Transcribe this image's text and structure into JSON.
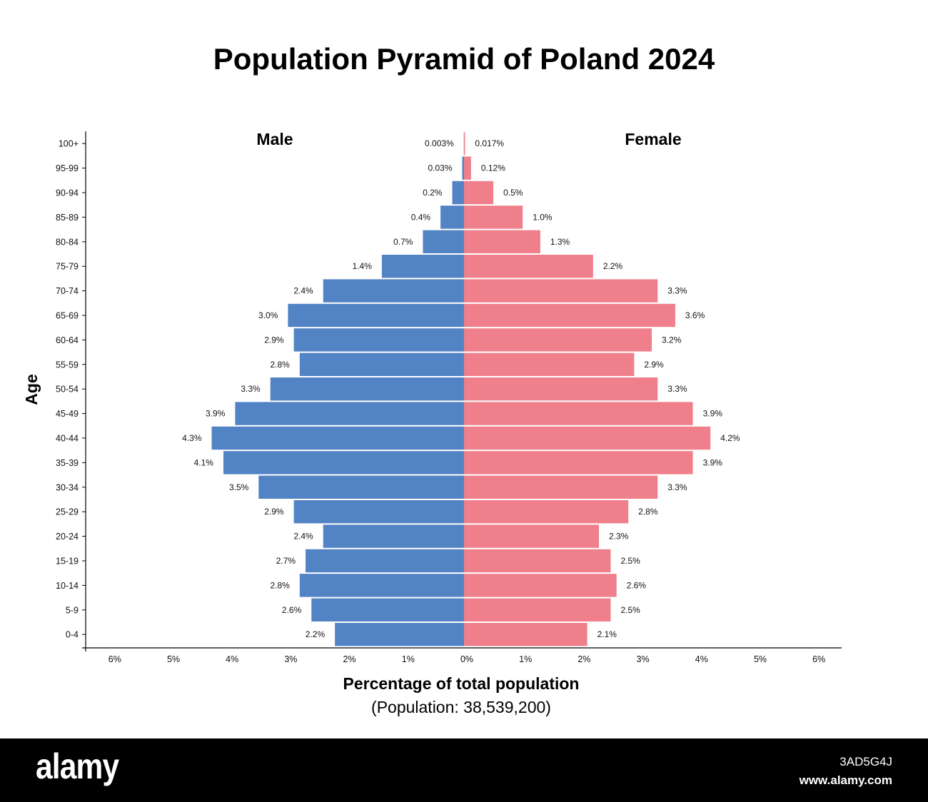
{
  "chart_data": {
    "type": "bar",
    "title": "Population Pyramid of Poland 2024",
    "categories": [
      "100+",
      "95-99",
      "90-94",
      "85-89",
      "80-84",
      "75-79",
      "70-74",
      "65-69",
      "60-64",
      "55-59",
      "50-54",
      "45-49",
      "40-44",
      "35-39",
      "30-34",
      "25-29",
      "20-24",
      "15-19",
      "10-14",
      "5-9",
      "0-4"
    ],
    "series": [
      {
        "name": "Male",
        "color": "#5283c4",
        "values": [
          0.003,
          0.03,
          0.2,
          0.4,
          0.7,
          1.4,
          2.4,
          3.0,
          2.9,
          2.8,
          3.3,
          3.9,
          4.3,
          4.1,
          3.5,
          2.9,
          2.4,
          2.7,
          2.8,
          2.6,
          2.2
        ],
        "labels": [
          "0.003%",
          "0.03%",
          "0.2%",
          "0.4%",
          "0.7%",
          "1.4%",
          "2.4%",
          "3.0%",
          "2.9%",
          "2.8%",
          "3.3%",
          "3.9%",
          "4.3%",
          "4.1%",
          "3.5%",
          "2.9%",
          "2.4%",
          "2.7%",
          "2.8%",
          "2.6%",
          "2.2%"
        ]
      },
      {
        "name": "Female",
        "color": "#ef7f8a",
        "values": [
          0.017,
          0.12,
          0.5,
          1.0,
          1.3,
          2.2,
          3.3,
          3.6,
          3.2,
          2.9,
          3.3,
          3.9,
          4.2,
          3.9,
          3.3,
          2.8,
          2.3,
          2.5,
          2.6,
          2.5,
          2.1
        ],
        "labels": [
          "0.017%",
          "0.12%",
          "0.5%",
          "1.0%",
          "1.3%",
          "2.2%",
          "3.3%",
          "3.6%",
          "3.2%",
          "2.9%",
          "3.3%",
          "3.9%",
          "4.2%",
          "3.9%",
          "3.3%",
          "2.8%",
          "2.3%",
          "2.5%",
          "2.6%",
          "2.5%",
          "2.1%"
        ]
      }
    ],
    "xticks": [
      "6%",
      "5%",
      "4%",
      "3%",
      "2%",
      "1%",
      "0%",
      "1%",
      "2%",
      "3%",
      "4%",
      "5%",
      "6%"
    ],
    "xlim": [
      -6,
      6
    ],
    "xlabel": "Percentage of total population",
    "xlabel_sub": "(Population: 38,539,200)",
    "ylabel": "Age",
    "grid": false,
    "legend": "top"
  },
  "watermark": {
    "logo": "alamy",
    "image_id": "3AD5G4J",
    "url": "www.alamy.com"
  }
}
